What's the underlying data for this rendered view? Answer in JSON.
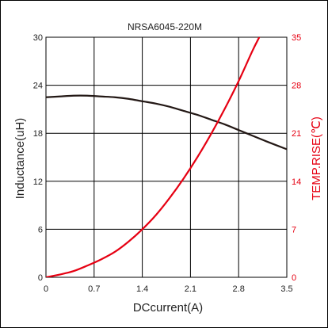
{
  "chart_data": {
    "type": "line",
    "title": "NRSA6045-220M",
    "xlabel": "DCcurrent(A)",
    "ylabel_left": "Inductance(uH)",
    "ylabel_right": "TEMP.RISE(℃)",
    "xlim": [
      0,
      3.5
    ],
    "ylim_left": [
      0,
      30
    ],
    "ylim_right": [
      0,
      35
    ],
    "x_ticks": [
      "0",
      "0.7",
      "1.4",
      "2.1",
      "2.8",
      "3.5"
    ],
    "y_left_ticks": [
      "0",
      "6",
      "12",
      "18",
      "24",
      "30"
    ],
    "y_right_ticks": [
      "0",
      "7",
      "14",
      "21",
      "28",
      "35"
    ],
    "grid": true,
    "colors": {
      "inductance": "#231815",
      "temp": "#e60012",
      "grid": "#000000"
    },
    "series": [
      {
        "axis": "left",
        "x": [
          0,
          0.2,
          0.4,
          0.6,
          0.8,
          1.0,
          1.2,
          1.4,
          1.6,
          1.8,
          2.0,
          2.2,
          2.4,
          2.6,
          2.8,
          3.0,
          3.2,
          3.5
        ],
        "y": [
          22.5,
          22.6,
          22.7,
          22.7,
          22.6,
          22.5,
          22.3,
          22.0,
          21.7,
          21.3,
          20.8,
          20.3,
          19.7,
          19.1,
          18.4,
          17.7,
          17.0,
          16.0
        ]
      },
      {
        "axis": "right",
        "x": [
          0,
          0.2,
          0.4,
          0.6,
          0.8,
          1.0,
          1.2,
          1.4,
          1.6,
          1.8,
          2.0,
          2.2,
          2.4,
          2.6,
          2.8,
          3.0,
          3.1
        ],
        "y": [
          0,
          0.4,
          0.9,
          1.7,
          2.6,
          3.7,
          5.2,
          7.0,
          9.1,
          11.6,
          14.4,
          17.5,
          20.9,
          24.6,
          28.6,
          33.0,
          35.0
        ]
      }
    ]
  }
}
